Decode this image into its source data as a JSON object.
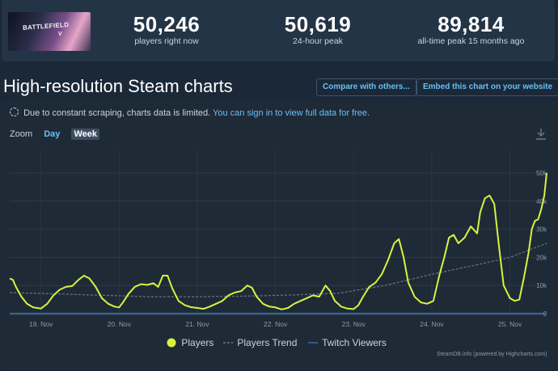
{
  "game": {
    "banner_title": "BATTLEFIELD",
    "banner_sub": "V"
  },
  "stats": [
    {
      "value": "50,246",
      "label": "players right now"
    },
    {
      "value": "50,619",
      "label": "24-hour peak"
    },
    {
      "value": "89,814",
      "label": "all-time peak 15 months ago"
    }
  ],
  "section_title": "High-resolution Steam charts",
  "buttons": {
    "compare": "Compare with others...",
    "embed": "Embed this chart on your website"
  },
  "notice": {
    "text": "Due to constant scraping, charts data is limited.",
    "link": "You can sign in to view full data for free."
  },
  "zoom": {
    "label": "Zoom",
    "day": "Day",
    "week": "Week"
  },
  "legend": {
    "players": "Players",
    "trend": "Players Trend",
    "twitch": "Twitch Viewers"
  },
  "credit": "SteamDB.info (powered by Highcharts.com)",
  "colors": {
    "players": "#d7f33f",
    "trend": "#6a7685",
    "twitch": "#2f6db5",
    "link": "#67c1f5"
  },
  "chart_data": {
    "type": "line",
    "x_tick_labels": [
      "19. Nov",
      "20. Nov",
      "21. Nov",
      "22. Nov",
      "23. Nov",
      "24. Nov",
      "25. Nov"
    ],
    "y_tick_labels": [
      "0",
      "10k",
      "20k",
      "30k",
      "40k",
      "50k"
    ],
    "ylim": [
      0,
      50000
    ],
    "xlim": [
      18.6,
      25.47
    ],
    "grid": true,
    "legend_position": "bottom",
    "series": [
      {
        "name": "Players",
        "x": [
          18.6,
          18.64,
          18.68,
          18.75,
          18.82,
          18.9,
          19.0,
          19.08,
          19.16,
          19.24,
          19.32,
          19.4,
          19.48,
          19.55,
          19.62,
          19.7,
          19.78,
          19.86,
          19.94,
          20.0,
          20.05,
          20.12,
          20.2,
          20.28,
          20.36,
          20.44,
          20.5,
          20.56,
          20.62,
          20.68,
          20.76,
          20.84,
          20.92,
          21.0,
          21.08,
          21.16,
          21.24,
          21.32,
          21.4,
          21.48,
          21.56,
          21.64,
          21.7,
          21.76,
          21.84,
          21.92,
          22.0,
          22.08,
          22.16,
          22.24,
          22.32,
          22.4,
          22.48,
          22.56,
          22.64,
          22.7,
          22.76,
          22.84,
          22.92,
          23.0,
          23.06,
          23.12,
          23.2,
          23.28,
          23.36,
          23.44,
          23.52,
          23.58,
          23.64,
          23.7,
          23.78,
          23.86,
          23.94,
          24.02,
          24.1,
          24.16,
          24.22,
          24.28,
          24.34,
          24.42,
          24.5,
          24.58,
          24.62,
          24.68,
          24.74,
          24.8,
          24.86,
          24.92,
          25.0,
          25.06,
          25.12,
          25.18,
          25.24,
          25.28,
          25.32,
          25.36,
          25.4,
          25.44,
          25.47
        ],
        "values": [
          12500,
          12000,
          9500,
          6000,
          3500,
          2200,
          1800,
          3500,
          6500,
          8500,
          9500,
          9800,
          12000,
          13500,
          12500,
          9500,
          5500,
          3500,
          2500,
          2200,
          4000,
          7000,
          9500,
          10500,
          10200,
          10800,
          9500,
          13500,
          13500,
          9000,
          4500,
          3000,
          2300,
          2000,
          1700,
          2500,
          3500,
          4500,
          6500,
          7500,
          8000,
          10000,
          9200,
          6000,
          3500,
          2500,
          2200,
          1500,
          2000,
          3500,
          4500,
          5500,
          6500,
          6000,
          10000,
          8000,
          4500,
          2500,
          1800,
          1600,
          3000,
          6000,
          9500,
          11000,
          14000,
          19000,
          25000,
          26500,
          20000,
          11000,
          6000,
          4000,
          3500,
          4500,
          14000,
          20000,
          27000,
          28000,
          25000,
          27000,
          31000,
          28500,
          36000,
          41000,
          42000,
          39000,
          24000,
          10000,
          5500,
          4500,
          5000,
          13000,
          22000,
          30000,
          33000,
          33500,
          37000,
          42000,
          50000
        ]
      },
      {
        "name": "Players Trend",
        "x": [
          18.6,
          19.2,
          19.8,
          20.4,
          21.0,
          21.6,
          22.2,
          22.8,
          23.4,
          24.0,
          24.6,
          25.0,
          25.47
        ],
        "values": [
          7500,
          7000,
          6500,
          6000,
          6000,
          6200,
          6600,
          7200,
          10000,
          14000,
          17500,
          20000,
          25000
        ]
      },
      {
        "name": "Twitch Viewers",
        "x": [
          18.6,
          25.47
        ],
        "values": [
          50,
          80
        ]
      }
    ]
  }
}
